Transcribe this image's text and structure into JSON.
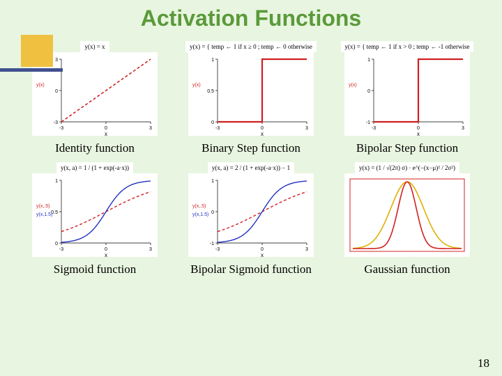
{
  "title": "Activation Functions",
  "page_number": "18",
  "colors": {
    "background": "#e8f5e0",
    "title": "#5a9a3a",
    "accent_box": "#f0c040",
    "accent_bar": "#405090",
    "plot_bg": "#ffffff",
    "axis": "#000000",
    "curve_red": "#d02020",
    "curve_blue": "#2030c0",
    "curve_yellow": "#e0b000"
  },
  "row1": {
    "identity": {
      "formula": "y(x) = x",
      "xlim": [
        -3,
        3
      ],
      "ylim": [
        -3,
        3
      ],
      "yticks": [
        -3,
        0,
        3
      ],
      "xticks": [
        -3,
        0,
        3
      ],
      "ylabel": "y(x)",
      "xlabel": "x",
      "line_color": "#d02020"
    },
    "binary_step": {
      "formula": "y(x) = { temp ← 1  if  x ≥ 0 ; temp ← 0  otherwise",
      "xlim": [
        -3,
        3
      ],
      "ylim": [
        0,
        1
      ],
      "yticks": [
        0,
        0.5,
        1
      ],
      "xticks": [
        -3,
        0,
        3
      ],
      "ylabel": "y(x)",
      "xlabel": "x",
      "line_color": "#d02020"
    },
    "bipolar_step": {
      "formula": "y(x) = { temp ← 1  if  x > 0 ; temp ← -1  otherwise",
      "xlim": [
        -3,
        3
      ],
      "ylim": [
        -1,
        1
      ],
      "yticks": [
        -1,
        0,
        1
      ],
      "xticks": [
        -3,
        0,
        3
      ],
      "ylabel": "y(x)",
      "xlabel": "x",
      "line_color": "#d02020"
    }
  },
  "captions_row1": {
    "identity": "Identity function",
    "binary_step": "Binary Step function",
    "bipolar_step": "Bipolar Step function"
  },
  "row2": {
    "sigmoid": {
      "formula": "y(x, a) = 1 / (1 + exp(-a·x))",
      "xlim": [
        -3,
        3
      ],
      "ylim": [
        0,
        1
      ],
      "yticks": [
        0,
        0.5,
        1
      ],
      "xticks": [
        -3,
        0,
        3
      ],
      "ylabel1": "y(x,.5)",
      "ylabel2": "y(x,1.5)",
      "xlabel": "x",
      "curve1_a": 0.5,
      "curve1_color": "#d02020",
      "curve2_a": 1.5,
      "curve2_color": "#2030c0"
    },
    "bipolar_sigmoid": {
      "formula": "y(x, a) = 2 / (1 + exp(-a·x)) − 1",
      "xlim": [
        -3,
        3
      ],
      "ylim": [
        -1,
        1
      ],
      "yticks": [
        -1,
        0,
        1
      ],
      "xticks": [
        -3,
        0,
        3
      ],
      "ylabel1": "y(x,.5)",
      "ylabel2": "y(x,1.5)",
      "xlabel": "x",
      "curve1_a": 0.5,
      "curve1_color": "#d02020",
      "curve2_a": 1.5,
      "curve2_color": "#2030c0"
    },
    "gaussian": {
      "formula_html": "y(x) = (1 / √(2π) σ) · e^(−(x−μ)² / 2σ²)",
      "xlim": [
        -3,
        3
      ],
      "ylim": [
        0,
        1
      ],
      "curve1_sigma": 0.5,
      "curve1_color": "#d02020",
      "curve2_sigma": 0.9,
      "curve2_color": "#e0b000",
      "border_color": "#d02020"
    }
  },
  "captions_row2": {
    "sigmoid": "Sigmoid function",
    "bipolar_sigmoid": "Bipolar Sigmoid function",
    "gaussian": "Gaussian function"
  }
}
